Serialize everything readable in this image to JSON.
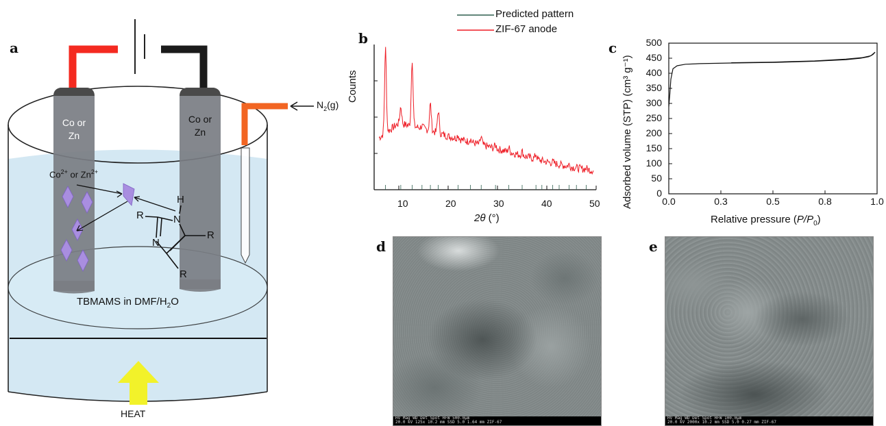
{
  "panels": {
    "a": {
      "letter": "a",
      "left_electrode_label": "Co or Zn",
      "right_electrode_label": "Co or Zn",
      "ion_label": "Co",
      "ion_sup_1": "2+",
      "ion_mid": " or Zn",
      "ion_sup_2": "2+",
      "gas_label": "N",
      "gas_sub": "2",
      "gas_suffix": "(g)",
      "solution_label_pre": "TBMAMS in DMF/H",
      "solution_sub": "2",
      "solution_label_post": "O",
      "heat_label": "HEAT",
      "molecule": {
        "H": "H",
        "N1": "N",
        "N2": "N",
        "R1": "R",
        "R2": "R",
        "R3": "R"
      },
      "colors": {
        "left_wire": "#f42a20",
        "right_wire": "#1b1b1b",
        "gas_tube": "#f26522",
        "heat_arrow": "#f2f22a",
        "crystal": "#a98ee0",
        "solution": "#cfe6f2"
      }
    },
    "b": {
      "letter": "b",
      "ylabel": "Counts",
      "xlabel_var": "2θ",
      "xlabel_unit": " (°)",
      "xticks": [
        "10",
        "20",
        "30",
        "40",
        "50"
      ],
      "legend": [
        "Predicted pattern",
        "ZIF-67 anode"
      ]
    },
    "c": {
      "letter": "c",
      "ylabel": "Adsorbed volume (STP) (cm³ g⁻¹)",
      "xlabel_pre": "Relative pressure (",
      "xlabel_var": "P/P",
      "xlabel_sub": "0",
      "xlabel_post": ")",
      "yticks": [
        "500",
        "450",
        "400",
        "350",
        "300",
        "250",
        "200",
        "150",
        "100",
        "50",
        "0"
      ],
      "xticks": [
        "0.0",
        "0.3",
        "0.5",
        "0.8",
        "1.0"
      ]
    },
    "d": {
      "letter": "d",
      "bar_top": "HV    Mag    WD    Det  Spot    HFW              500.0μm",
      "bar_bottom": "20.0 kV  125x  10.2 mm  SSD  5.0   1.64 mm              ZIF-67"
    },
    "e": {
      "letter": "e",
      "bar_top": "HV    Mag    WD    Det  Spot    HFW              100.0μm",
      "bar_bottom": "20.0 kV  2000x  10.2 mm  SSD  5.0   0.27 mm             ZIF-67"
    }
  },
  "chart_data": [
    {
      "type": "line",
      "panel": "b",
      "xlabel": "2θ (°)",
      "ylabel": "Counts",
      "xlim": [
        5,
        50
      ],
      "xticks": [
        10,
        20,
        30,
        40,
        50
      ],
      "legend_position": "top",
      "series": [
        {
          "name": "Predicted pattern",
          "color": "#2f5f4f",
          "peaks": []
        },
        {
          "name": "ZIF-67 anode",
          "color": "#ee1c25",
          "baseline": [
            [
              5,
              0.28
            ],
            [
              10,
              0.42
            ],
            [
              15,
              0.38
            ],
            [
              20,
              0.32
            ],
            [
              25,
              0.27
            ],
            [
              30,
              0.22
            ],
            [
              35,
              0.17
            ],
            [
              40,
              0.12
            ],
            [
              45,
              0.08
            ],
            [
              50,
              0.05
            ]
          ],
          "peaks": [
            [
              7.3,
              1.0
            ],
            [
              10.4,
              0.55
            ],
            [
              12.7,
              0.92
            ],
            [
              14.7,
              0.4
            ],
            [
              16.4,
              0.57
            ],
            [
              18.0,
              0.52
            ],
            [
              22.0,
              0.33
            ],
            [
              24.5,
              0.3
            ],
            [
              26.7,
              0.31
            ],
            [
              29.6,
              0.25
            ],
            [
              32.3,
              0.23
            ],
            [
              35.0,
              0.2
            ],
            [
              37.8,
              0.18
            ],
            [
              41.2,
              0.12
            ],
            [
              44.5,
              0.1
            ],
            [
              48.0,
              0.07
            ]
          ]
        }
      ]
    },
    {
      "type": "line",
      "panel": "c",
      "xlabel": "Relative pressure (P/P0)",
      "ylabel": "Adsorbed volume (STP) (cm³ g⁻¹)",
      "xlim": [
        0,
        1
      ],
      "ylim": [
        0,
        500
      ],
      "series": [
        {
          "name": "adsorption",
          "x": [
            0,
            0.005,
            0.01,
            0.02,
            0.04,
            0.08,
            0.15,
            0.3,
            0.5,
            0.7,
            0.85,
            0.92,
            0.96,
            0.98,
            0.99
          ],
          "y": [
            290,
            330,
            380,
            415,
            425,
            430,
            432,
            434,
            436,
            440,
            445,
            450,
            455,
            462,
            470
          ]
        },
        {
          "name": "desorption",
          "x": [
            0.99,
            0.97,
            0.93,
            0.85,
            0.7,
            0.5,
            0.3
          ],
          "y": [
            470,
            458,
            452,
            447,
            441,
            437,
            435
          ]
        }
      ]
    }
  ]
}
